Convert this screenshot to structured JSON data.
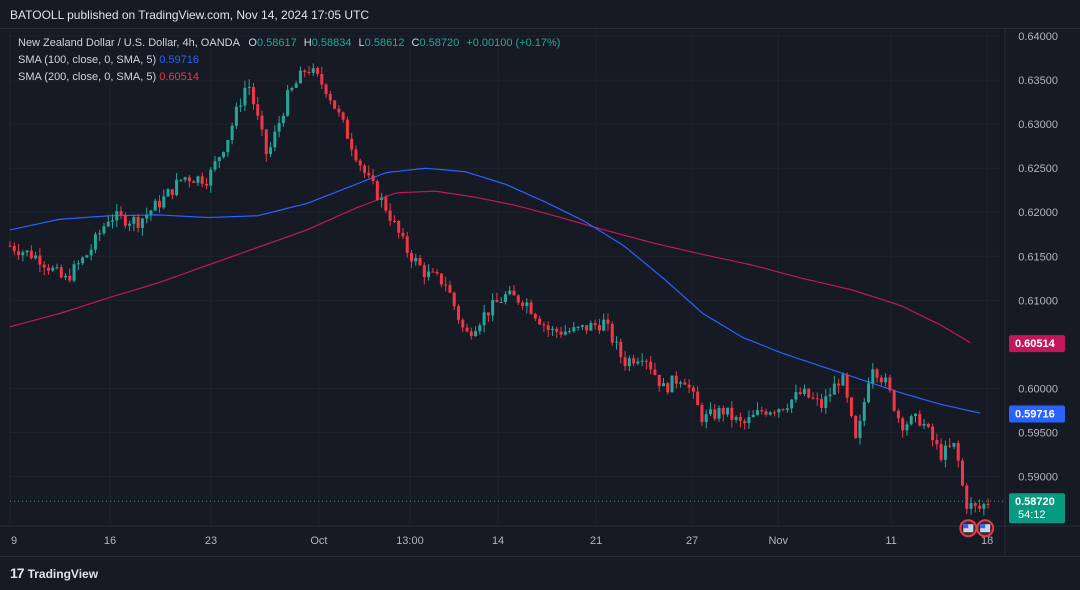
{
  "header": {
    "text": "BATOOLL published on TradingView.com, Nov 14, 2024 17:05 UTC"
  },
  "legend": {
    "title": "New Zealand Dollar / U.S. Dollar, 4h, OANDA",
    "o_label": "O",
    "o_value": "0.58617",
    "h_label": "H",
    "h_value": "0.58834",
    "l_label": "L",
    "l_value": "0.58612",
    "c_label": "C",
    "c_value": "0.58720",
    "change": "+0.00100 (+0.17%)",
    "sma100_label": "SMA (100, close, 0, SMA, 5)",
    "sma100_value": "0.59716",
    "sma200_label": "SMA (200, close, 0, SMA, 5)",
    "sma200_value": "0.60514"
  },
  "price_scale": {
    "ticks": [
      "0.64000",
      "0.63500",
      "0.63000",
      "0.62500",
      "0.62000",
      "0.61500",
      "0.61000",
      "0.60000",
      "0.59500",
      "0.59000"
    ],
    "tick_values": [
      0.64,
      0.635,
      0.63,
      0.625,
      0.62,
      0.615,
      0.61,
      0.6,
      0.595,
      0.59
    ],
    "price_tag": "0.58720",
    "price_tag_value": 0.5872,
    "countdown": "54:12",
    "sma100_tag": "0.59716",
    "sma100_tag_value": 0.59716,
    "sma200_tag": "0.60514",
    "sma200_tag_value": 0.60514
  },
  "time_scale": {
    "labels": [
      "9",
      "16",
      "23",
      "Oct",
      "13:00",
      "14",
      "21",
      "27",
      "Nov",
      "11",
      "18"
    ],
    "label_positions": [
      0.0,
      0.101,
      0.203,
      0.312,
      0.404,
      0.493,
      0.592,
      0.689,
      0.776,
      0.89,
      0.987
    ]
  },
  "footer": {
    "brand": "TradingView",
    "mark": "17"
  },
  "colors": {
    "up": "#26a69a",
    "down": "#f23645",
    "sma100": "#2962ff",
    "sma200": "#c2185b",
    "price_line": "#26a69a"
  },
  "chart_data": {
    "type": "candlestick",
    "symbol": "NZDUSD",
    "interval": "4h",
    "ylim": [
      0.5845,
      0.6408
    ],
    "close_keypoints": [
      [
        0.0,
        0.6162
      ],
      [
        0.03,
        0.6148
      ],
      [
        0.055,
        0.6122
      ],
      [
        0.08,
        0.6155
      ],
      [
        0.1,
        0.6195
      ],
      [
        0.13,
        0.619
      ],
      [
        0.155,
        0.6215
      ],
      [
        0.175,
        0.624
      ],
      [
        0.2,
        0.6238
      ],
      [
        0.22,
        0.6285
      ],
      [
        0.24,
        0.635
      ],
      [
        0.26,
        0.6262
      ],
      [
        0.28,
        0.633
      ],
      [
        0.3,
        0.6365
      ],
      [
        0.32,
        0.634
      ],
      [
        0.34,
        0.629
      ],
      [
        0.36,
        0.624
      ],
      [
        0.38,
        0.6205
      ],
      [
        0.4,
        0.6158
      ],
      [
        0.42,
        0.613
      ],
      [
        0.44,
        0.612
      ],
      [
        0.46,
        0.606
      ],
      [
        0.48,
        0.6085
      ],
      [
        0.5,
        0.6105
      ],
      [
        0.52,
        0.61
      ],
      [
        0.545,
        0.6065
      ],
      [
        0.57,
        0.6065
      ],
      [
        0.6,
        0.6075
      ],
      [
        0.62,
        0.603
      ],
      [
        0.64,
        0.604
      ],
      [
        0.66,
        0.6
      ],
      [
        0.68,
        0.6015
      ],
      [
        0.7,
        0.5965
      ],
      [
        0.72,
        0.5975
      ],
      [
        0.74,
        0.5958
      ],
      [
        0.76,
        0.5975
      ],
      [
        0.78,
        0.598
      ],
      [
        0.8,
        0.5995
      ],
      [
        0.82,
        0.598
      ],
      [
        0.84,
        0.6015
      ],
      [
        0.855,
        0.5935
      ],
      [
        0.87,
        0.603
      ],
      [
        0.885,
        0.6005
      ],
      [
        0.9,
        0.596
      ],
      [
        0.92,
        0.5965
      ],
      [
        0.94,
        0.5925
      ],
      [
        0.955,
        0.5935
      ],
      [
        0.965,
        0.587
      ],
      [
        0.978,
        0.5862
      ],
      [
        0.988,
        0.5872
      ]
    ],
    "sma100_keypoints": [
      [
        0.0,
        0.618
      ],
      [
        0.05,
        0.6192
      ],
      [
        0.1,
        0.6196
      ],
      [
        0.15,
        0.6197
      ],
      [
        0.2,
        0.6194
      ],
      [
        0.25,
        0.6196
      ],
      [
        0.3,
        0.621
      ],
      [
        0.35,
        0.6232
      ],
      [
        0.38,
        0.6245
      ],
      [
        0.42,
        0.625
      ],
      [
        0.46,
        0.6246
      ],
      [
        0.5,
        0.6232
      ],
      [
        0.54,
        0.6212
      ],
      [
        0.58,
        0.619
      ],
      [
        0.62,
        0.6162
      ],
      [
        0.66,
        0.6125
      ],
      [
        0.7,
        0.6085
      ],
      [
        0.74,
        0.6058
      ],
      [
        0.78,
        0.604
      ],
      [
        0.82,
        0.6025
      ],
      [
        0.86,
        0.601
      ],
      [
        0.9,
        0.5995
      ],
      [
        0.94,
        0.5982
      ],
      [
        0.98,
        0.5972
      ]
    ],
    "sma200_keypoints": [
      [
        0.0,
        0.607
      ],
      [
        0.05,
        0.6085
      ],
      [
        0.1,
        0.6103
      ],
      [
        0.15,
        0.612
      ],
      [
        0.2,
        0.614
      ],
      [
        0.25,
        0.616
      ],
      [
        0.3,
        0.618
      ],
      [
        0.35,
        0.6205
      ],
      [
        0.39,
        0.6222
      ],
      [
        0.43,
        0.6224
      ],
      [
        0.47,
        0.6217
      ],
      [
        0.51,
        0.6208
      ],
      [
        0.55,
        0.6196
      ],
      [
        0.6,
        0.618
      ],
      [
        0.65,
        0.6165
      ],
      [
        0.7,
        0.6152
      ],
      [
        0.75,
        0.614
      ],
      [
        0.8,
        0.6125
      ],
      [
        0.85,
        0.6112
      ],
      [
        0.9,
        0.6094
      ],
      [
        0.94,
        0.6072
      ],
      [
        0.97,
        0.6052
      ]
    ]
  }
}
